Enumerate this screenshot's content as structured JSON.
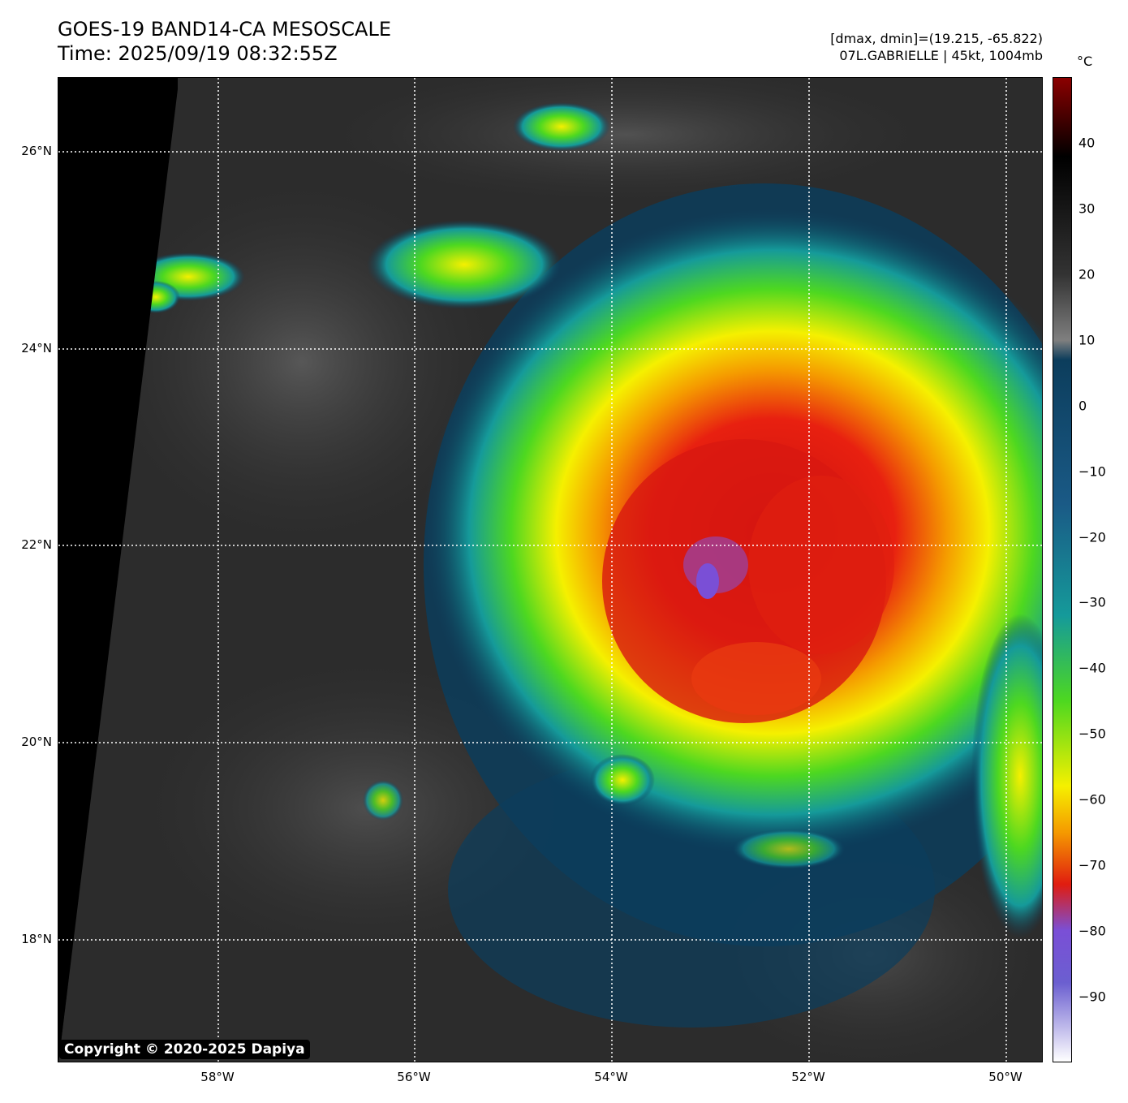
{
  "header": {
    "title": "GOES-19 BAND14-CA MESOSCALE",
    "time": "Time: 2025/09/19 08:32:55Z",
    "dmax_dmin": "[dmax, dmin]=(19.215, -65.822)",
    "storm": "07L.GABRIELLE | 45kt, 1004mb"
  },
  "axes": {
    "lat_ticks": [
      "26°N",
      "24°N",
      "22°N",
      "20°N",
      "18°N"
    ],
    "lon_ticks": [
      "58°W",
      "56°W",
      "54°W",
      "52°W",
      "50°W"
    ]
  },
  "colorbar": {
    "unit": "°C",
    "ticks": [
      "40",
      "30",
      "20",
      "10",
      "0",
      "−10",
      "−20",
      "−30",
      "−40",
      "−50",
      "−60",
      "−70",
      "−80",
      "−90"
    ],
    "tick_values": [
      40,
      30,
      20,
      10,
      0,
      -10,
      -20,
      -30,
      -40,
      -50,
      -60,
      -70,
      -80,
      -90
    ],
    "range": [
      -100,
      50
    ],
    "colors": {
      "warm_top": "#8b0000",
      "warm_black": "#000000",
      "gray": "#7f7f7f",
      "dark_blue": "#0c3d5c",
      "teal": "#159a9a",
      "green": "#4dd820",
      "yellow": "#f5f000",
      "orange": "#f59a00",
      "red": "#e01c10",
      "purple": "#7a4fd6",
      "white": "#ffffff"
    }
  },
  "storm_center": {
    "lat": 21.7,
    "lon": -53.0
  },
  "copyright": "Copyright © 2020-2025 Dapiya"
}
